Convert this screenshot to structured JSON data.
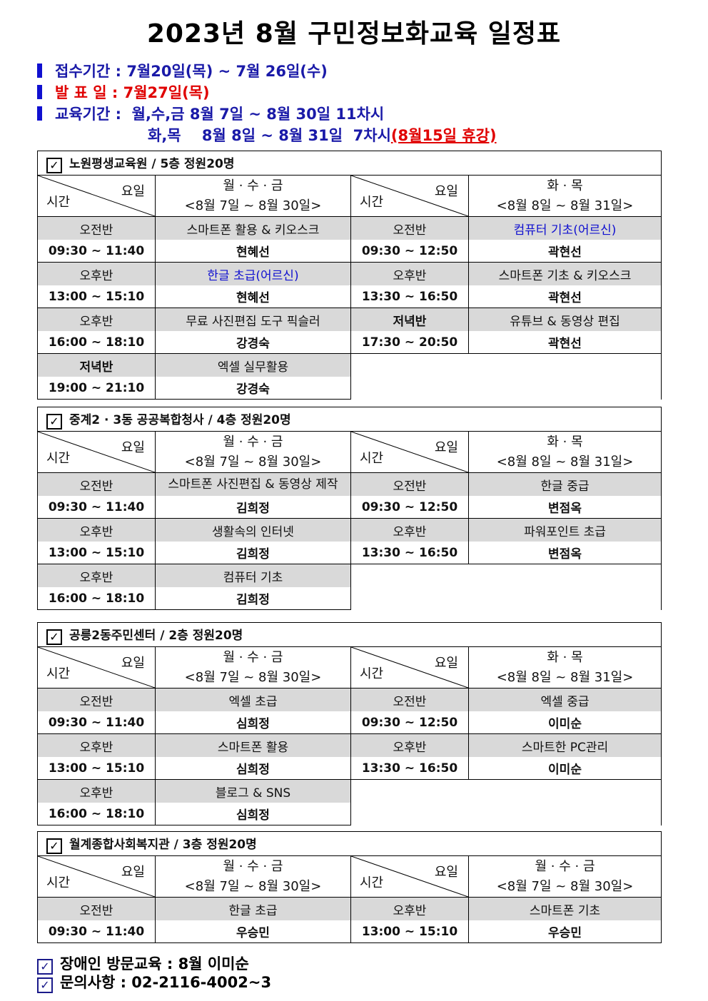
{
  "title": "2023년 8월 구민정보화교육 일정표",
  "info": {
    "registration_label": "접수기간 : ",
    "registration_value": "7월20일(목) ~ 7월 26일(수)",
    "announcement_label": "발 표 일 : ",
    "announcement_value": "7월27일(목)",
    "period_label": "교육기간 :  ",
    "period_line1": "월,수,금 8월 7일 ~ 8월 30일 11차시",
    "period_line2": "화,목    8월 8일 ~ 8월 31일  7차시",
    "holiday_note": "(8월15일 휴강)"
  },
  "header_labels": {
    "day": "요일",
    "time": "시간"
  },
  "colors": {
    "instructor": "#2e8b00",
    "highlight_course": "#1010d0",
    "gray_row": "#d9d9d9",
    "announcement": "#e00000"
  },
  "sections": [
    {
      "title": "노원평생교육원 / 5층 정원20명",
      "left_days": "월 · 수 · 금",
      "left_range": "<8월 7일 ~ 8월 30일>",
      "right_days": "화 · 목",
      "right_range": "<8월 8일 ~ 8월 31일>",
      "rows": [
        {
          "left": {
            "period": "오전반",
            "time": "09:30 ~ 11:40",
            "course": "스마트폰 활용 & 키오스크",
            "instructor": "현혜선"
          },
          "right": {
            "period": "오전반",
            "time": "09:30 ~ 12:50",
            "course": "컴퓨터 기초(어르신)",
            "course_blue": true,
            "instructor": "곽현선"
          }
        },
        {
          "left": {
            "period": "오후반",
            "time": "13:00 ~ 15:10",
            "course": "한글 초급(어르신)",
            "course_blue": true,
            "instructor": "현혜선"
          },
          "right": {
            "period": "오후반",
            "time": "13:30 ~ 16:50",
            "course": "스마트폰 기초 & 키오스크",
            "instructor": "곽현선"
          }
        },
        {
          "left": {
            "period": "오후반",
            "time": "16:00 ~ 18:10",
            "course": "무료 사진편집 도구 픽슬러",
            "instructor": "강경숙"
          },
          "right": {
            "period": "저녁반",
            "period_bold": true,
            "time": "17:30 ~ 20:50",
            "course": "유튜브 & 동영상 편집",
            "instructor": "곽현선"
          }
        },
        {
          "left": {
            "period": "저녁반",
            "period_bold": true,
            "time": "19:00 ~ 21:10",
            "course": "엑셀 실무활용",
            "instructor": "강경숙"
          }
        }
      ]
    },
    {
      "title": "중계2 · 3동 공공복합청사 / 4층 정원20명",
      "left_days": "월 · 수 · 금",
      "left_range": "<8월 7일 ~ 8월 30일>",
      "right_days": "화 · 목",
      "right_range": "<8월 8일 ~ 8월 31일>",
      "rows": [
        {
          "left": {
            "period": "오전반",
            "time": "09:30 ~ 11:40",
            "course": "스마트폰 사진편집 & 동영상 제작",
            "course_wrap": true,
            "instructor": "김희정"
          },
          "right": {
            "period": "오전반",
            "time": "09:30 ~ 12:50",
            "course": "한글 중급",
            "instructor": "변점옥"
          }
        },
        {
          "left": {
            "period": "오후반",
            "time": "13:00 ~ 15:10",
            "course": "생활속의 인터넷",
            "instructor": "김희정"
          },
          "right": {
            "period": "오후반",
            "time": "13:30 ~ 16:50",
            "course": "파워포인트 초급",
            "instructor": "변점옥"
          }
        },
        {
          "left": {
            "period": "오후반",
            "time": "16:00 ~ 18:10",
            "course": "컴퓨터 기초",
            "instructor": "김희정"
          }
        }
      ]
    },
    {
      "title": "공릉2동주민센터 / 2층 정원20명",
      "left_days": "월 · 수 · 금",
      "left_range": "<8월 7일 ~ 8월 30일>",
      "right_days": "화 · 목",
      "right_range": "<8월 8일 ~ 8월 31일>",
      "rows": [
        {
          "left": {
            "period": "오전반",
            "time": "09:30 ~ 11:40",
            "course": "엑셀 초급",
            "instructor": "심희정"
          },
          "right": {
            "period": "오전반",
            "time": "09:30 ~ 12:50",
            "course": "엑셀 중급",
            "instructor": "이미순"
          }
        },
        {
          "left": {
            "period": "오후반",
            "time": "13:00 ~ 15:10",
            "course": "스마트폰 활용",
            "instructor": "심희정"
          },
          "right": {
            "period": "오후반",
            "time": "13:30 ~ 16:50",
            "course": "스마트한 PC관리",
            "instructor": "이미순"
          }
        },
        {
          "left": {
            "period": "오후반",
            "time": "16:00 ~ 18:10",
            "course": "블로그 & SNS",
            "instructor": "심희정"
          }
        }
      ]
    },
    {
      "title": "월계종합사회복지관 / 3층 정원20명",
      "left_days": "월 · 수 · 금",
      "left_range": "<8월 7일 ~ 8월 30일>",
      "right_days": "월 · 수 · 금",
      "right_range": "<8월 7일 ~ 8월 30일>",
      "rows": [
        {
          "left": {
            "period": "오전반",
            "time": "09:30 ~ 11:40",
            "course": "한글 초급",
            "instructor": "우승민"
          },
          "right": {
            "period": "오후반",
            "time": "13:00 ~ 15:10",
            "course": "스마트폰 기초",
            "instructor": "우승민"
          }
        }
      ]
    }
  ],
  "footer": [
    "장애인 방문교육 : 8월 이미순",
    "문의사항 : 02-2116-4002~3"
  ]
}
